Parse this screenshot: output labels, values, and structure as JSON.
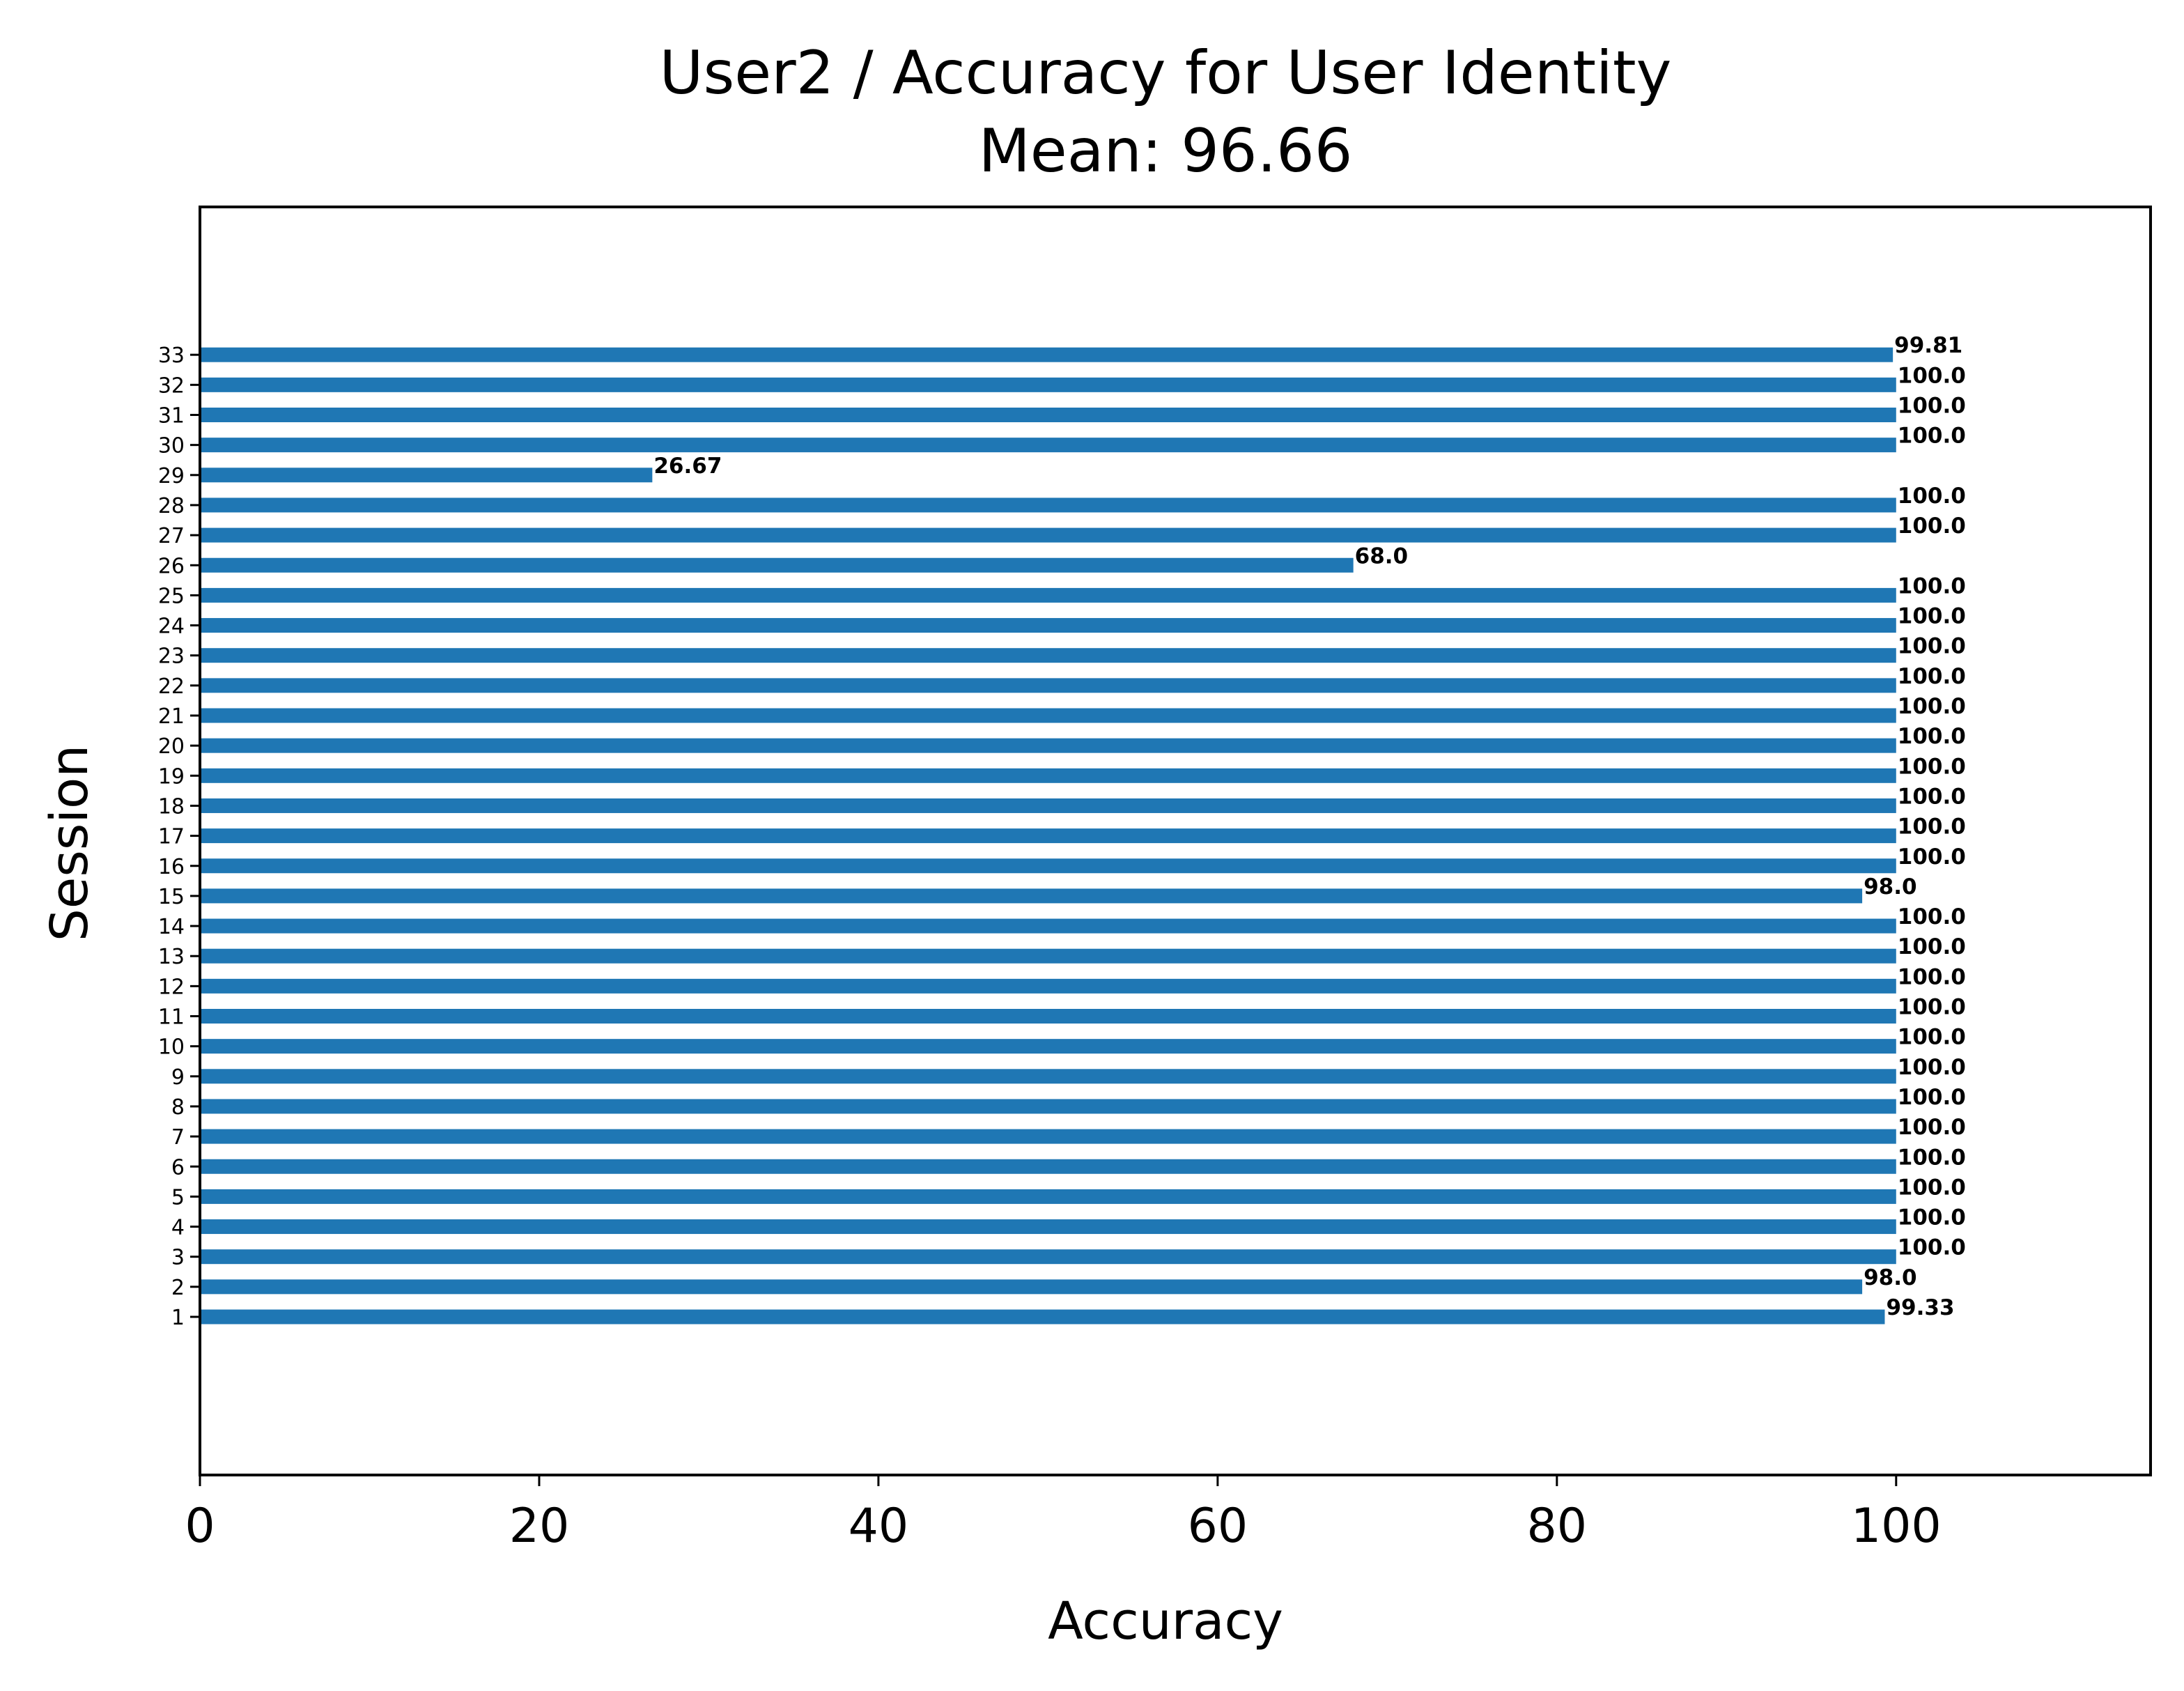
{
  "chart_data": {
    "type": "bar",
    "orientation": "horizontal",
    "title": "User2 / Accuracy for User Identity",
    "subtitle": "Mean: 96.66",
    "xlabel": "Accuracy",
    "ylabel": "Session",
    "xlim": [
      0,
      115
    ],
    "xticks": [
      0,
      20,
      40,
      60,
      80,
      100
    ],
    "grid": false,
    "bar_color": "#1f77b4",
    "categories": [
      "1",
      "2",
      "3",
      "4",
      "5",
      "6",
      "7",
      "8",
      "9",
      "10",
      "11",
      "12",
      "13",
      "14",
      "15",
      "16",
      "17",
      "18",
      "19",
      "20",
      "21",
      "22",
      "23",
      "24",
      "25",
      "26",
      "27",
      "28",
      "29",
      "30",
      "31",
      "32",
      "33"
    ],
    "values": [
      99.33,
      98.0,
      100.0,
      100.0,
      100.0,
      100.0,
      100.0,
      100.0,
      100.0,
      100.0,
      100.0,
      100.0,
      100.0,
      100.0,
      98.0,
      100.0,
      100.0,
      100.0,
      100.0,
      100.0,
      100.0,
      100.0,
      100.0,
      100.0,
      100.0,
      68.0,
      100.0,
      100.0,
      26.67,
      100.0,
      100.0,
      100.0,
      99.81
    ],
    "value_labels": [
      "99.33",
      "98.0",
      "100.0",
      "100.0",
      "100.0",
      "100.0",
      "100.0",
      "100.0",
      "100.0",
      "100.0",
      "100.0",
      "100.0",
      "100.0",
      "100.0",
      "98.0",
      "100.0",
      "100.0",
      "100.0",
      "100.0",
      "100.0",
      "100.0",
      "100.0",
      "100.0",
      "100.0",
      "100.0",
      "68.0",
      "100.0",
      "100.0",
      "26.67",
      "100.0",
      "100.0",
      "100.0",
      "99.81"
    ]
  }
}
